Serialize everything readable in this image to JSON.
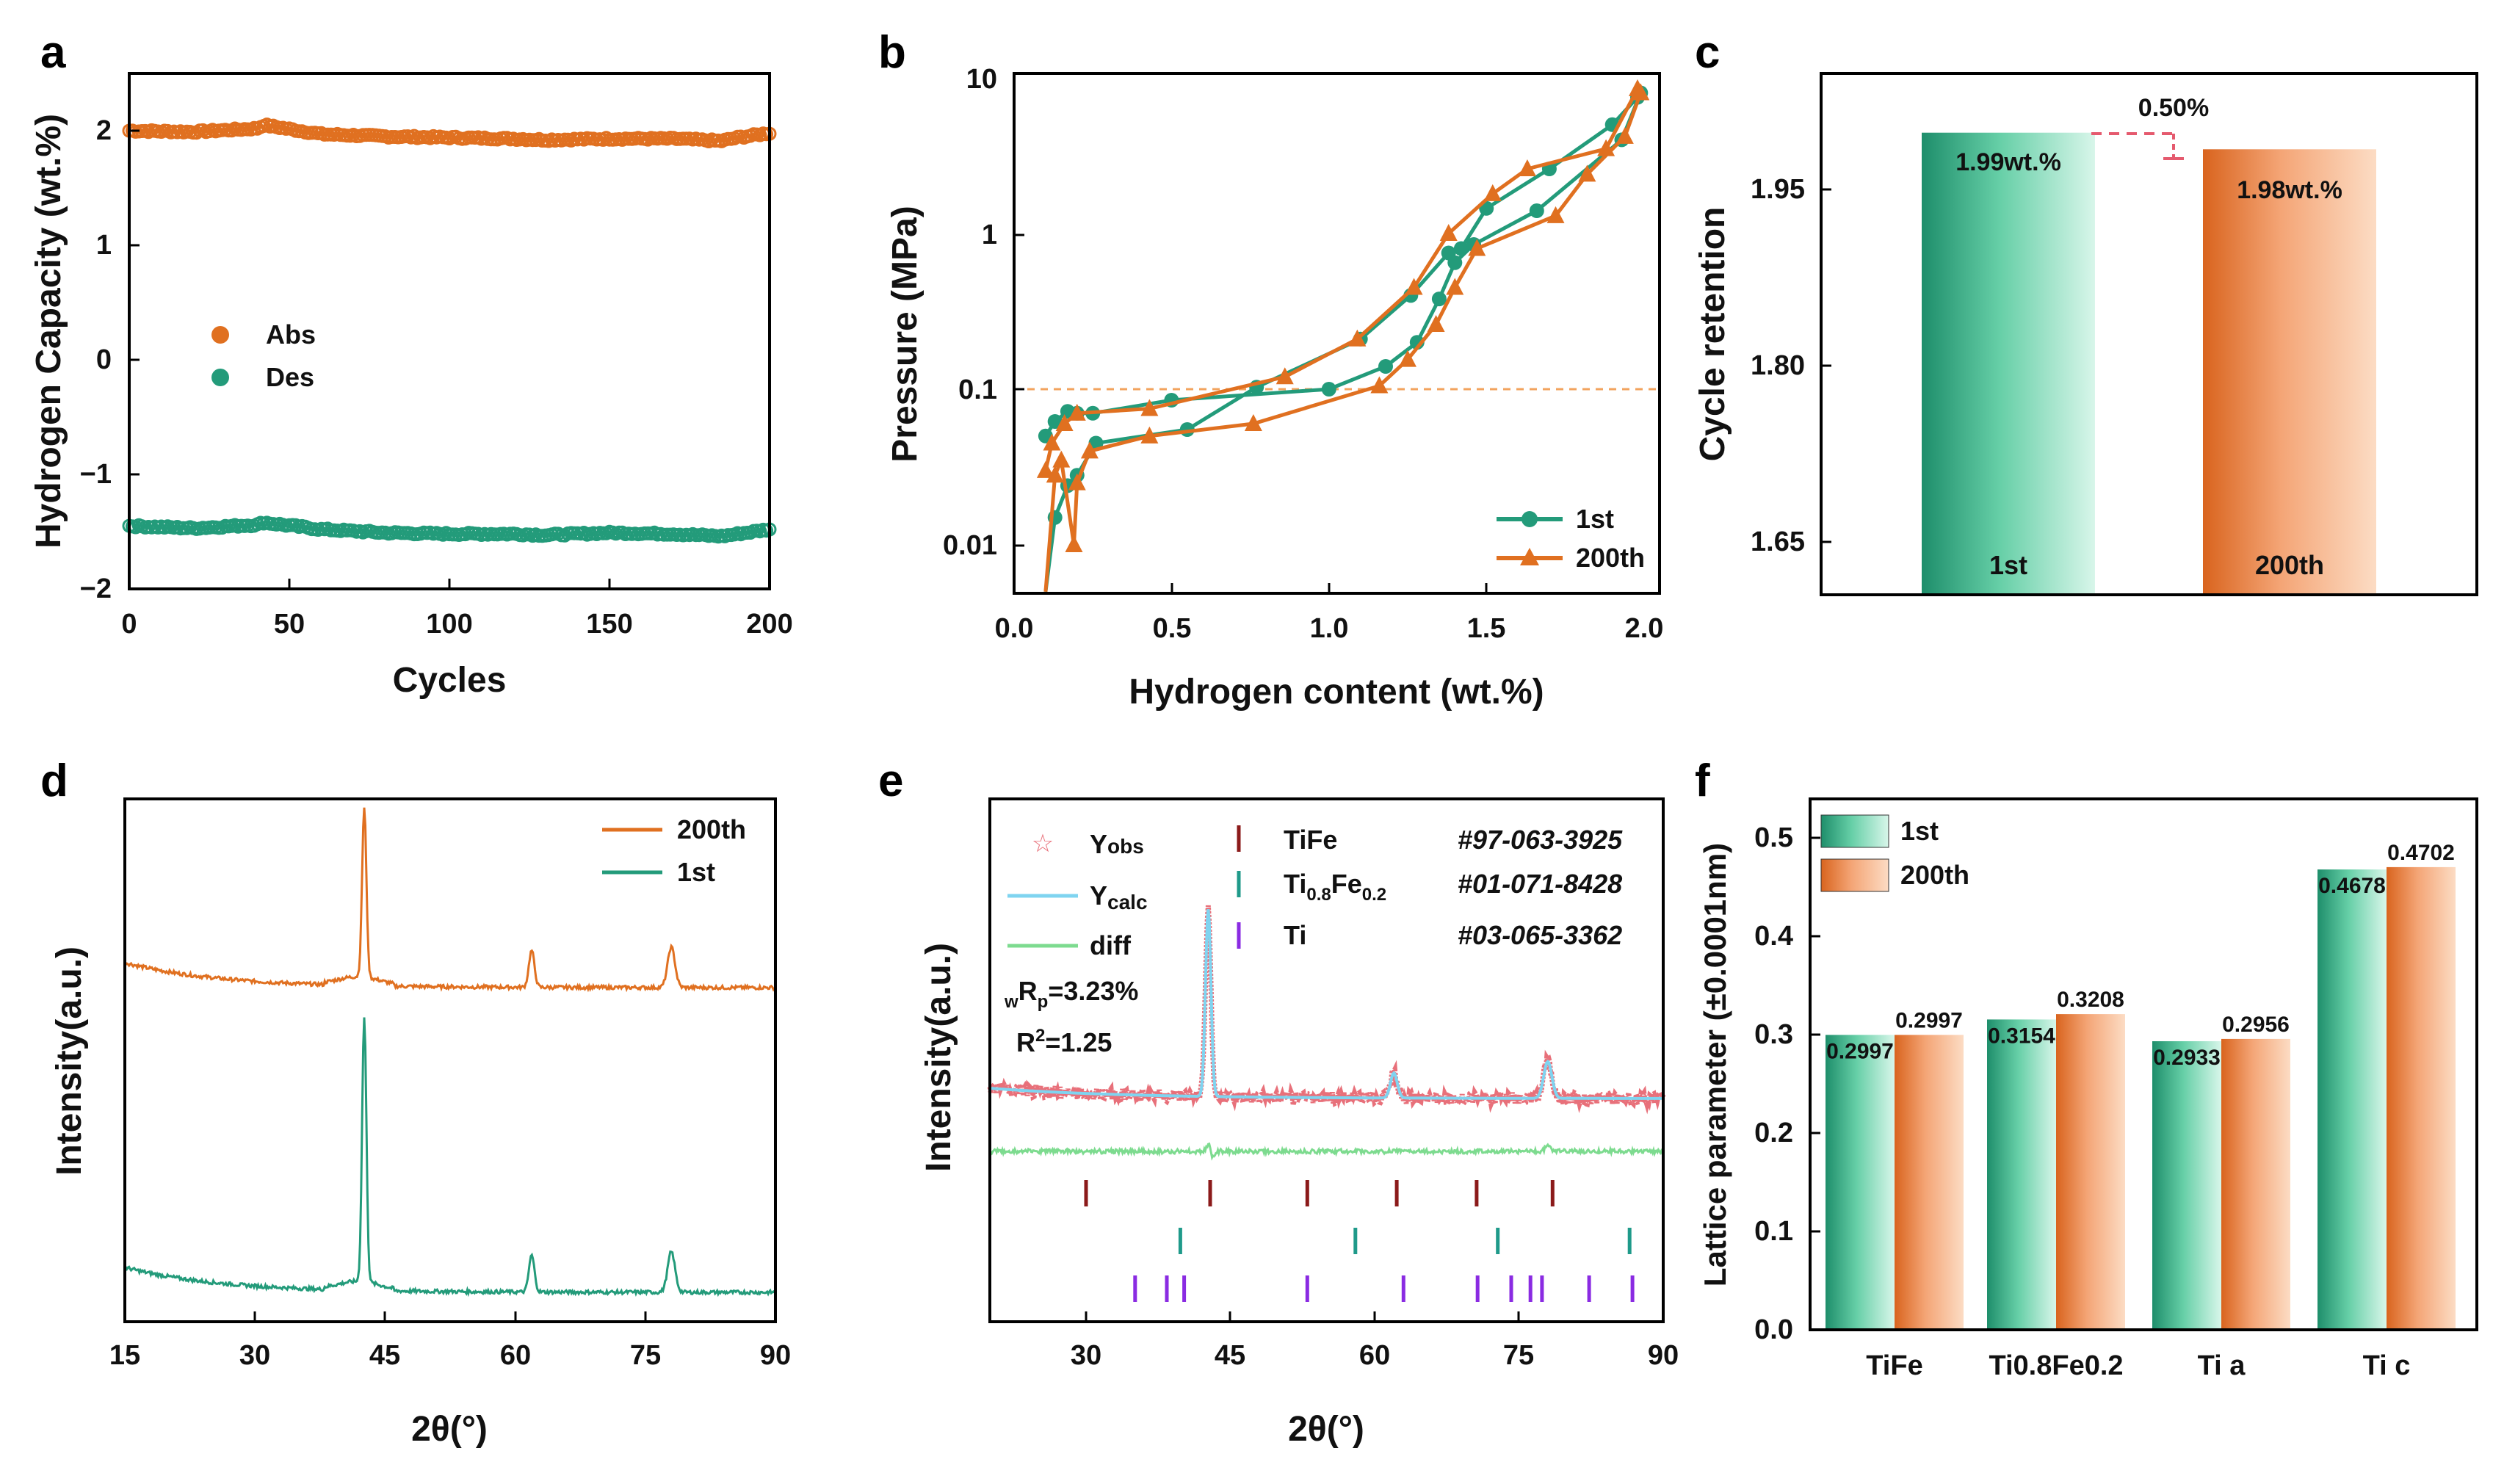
{
  "colors": {
    "orange": "#E07020",
    "green": "#239B7A",
    "red_obs": "#E8707A",
    "calc": "#7FD4F0",
    "diff": "#7DDB8F",
    "tife_tick": "#8B1A1A",
    "tife02_tick": "#1F9A8A",
    "ti_tick": "#8A2BE2",
    "bar_green_dark": "#1E8E6B",
    "bar_green_light": "#D8F6EA",
    "bar_orange_dark": "#D9641E",
    "bar_orange_light": "#FCDCC4"
  },
  "chart_data": [
    {
      "panel": "a",
      "type": "scatter",
      "xlabel": "Cycles",
      "ylabel": "Hydrogen Capacity (wt.%)",
      "xlim": [
        0,
        200
      ],
      "ylim": [
        -2,
        2.5
      ],
      "xticks": [
        "0",
        "50",
        "100",
        "150",
        "200"
      ],
      "yticks": [
        "2",
        "1",
        "0",
        "−1",
        "−2"
      ],
      "ytick_values": [
        2,
        1,
        0,
        -1,
        -2
      ],
      "legend": [
        "Abs",
        "Des"
      ],
      "series": [
        {
          "name": "Abs",
          "x": [
            0,
            20,
            40,
            42,
            60,
            80,
            100,
            120,
            130,
            150,
            170,
            185,
            190,
            200
          ],
          "y": [
            2.0,
            1.99,
            2.02,
            2.05,
            1.97,
            1.95,
            1.94,
            1.93,
            1.92,
            1.93,
            1.93,
            1.91,
            1.94,
            1.98
          ]
        },
        {
          "name": "Des",
          "x": [
            0,
            20,
            40,
            42,
            60,
            80,
            100,
            120,
            130,
            150,
            170,
            185,
            190,
            200
          ],
          "y": [
            -1.45,
            -1.47,
            -1.44,
            -1.42,
            -1.48,
            -1.51,
            -1.52,
            -1.52,
            -1.53,
            -1.51,
            -1.52,
            -1.54,
            -1.52,
            -1.48
          ]
        }
      ]
    },
    {
      "panel": "b",
      "type": "line",
      "xlabel": "Hydrogen content (wt.%)",
      "ylabel": "Pressure (MPa)",
      "xlim": [
        0,
        2.05
      ],
      "ylim_log": [
        0.005,
        10
      ],
      "xticks": [
        "0.0",
        "0.5",
        "1.0",
        "1.5",
        "2.0"
      ],
      "yticks": [
        "10",
        "1",
        "0.1",
        "0.01"
      ],
      "ytick_values": [
        10,
        1,
        0.1,
        0.01
      ],
      "reference_line": 0.1,
      "legend": [
        "1st",
        "200th"
      ],
      "series": [
        {
          "name": "1st",
          "x": [
            0.1,
            0.13,
            0.17,
            0.2,
            0.26,
            0.55,
            0.77,
            1.1,
            1.26,
            1.38,
            1.42,
            1.5,
            1.7,
            1.9,
            1.98,
            1.99,
            1.93,
            1.66,
            1.46,
            1.4,
            1.35,
            1.28,
            1.18,
            1.0,
            0.5,
            0.25,
            0.2,
            0.17,
            0.13,
            0.1
          ],
          "y": [
            0.005,
            0.015,
            0.024,
            0.028,
            0.045,
            0.055,
            0.103,
            0.21,
            0.4,
            0.75,
            0.8,
            1.45,
            2.6,
            5.0,
            7.5,
            8.0,
            4.0,
            1.4,
            0.85,
            0.65,
            0.38,
            0.2,
            0.14,
            0.1,
            0.085,
            0.07,
            0.07,
            0.072,
            0.062,
            0.05
          ]
        },
        {
          "name": "200th",
          "x": [
            0.1,
            0.13,
            0.15,
            0.19,
            0.2,
            0.24,
            0.43,
            0.76,
            1.16,
            1.25,
            1.34,
            1.4,
            1.47,
            1.72,
            1.82,
            1.94,
            1.99,
            1.98,
            1.88,
            1.63,
            1.52,
            1.38,
            1.27,
            1.09,
            0.86,
            0.43,
            0.2,
            0.16,
            0.12,
            0.1
          ],
          "y": [
            0.005,
            0.028,
            0.035,
            0.01,
            0.025,
            0.04,
            0.05,
            0.06,
            0.105,
            0.155,
            0.26,
            0.45,
            0.8,
            1.3,
            2.4,
            4.2,
            8.0,
            8.5,
            3.5,
            2.6,
            1.8,
            1.0,
            0.45,
            0.21,
            0.12,
            0.075,
            0.07,
            0.06,
            0.045,
            0.03
          ]
        }
      ]
    },
    {
      "panel": "c",
      "type": "bar",
      "ylabel": "Cycle retention",
      "ylim": [
        1.6,
        2.04
      ],
      "yticks": [
        "1.95",
        "1.80",
        "1.65"
      ],
      "ytick_values": [
        1.95,
        1.8,
        1.65
      ],
      "categories": [
        "1st",
        "200th"
      ],
      "values": [
        1.99,
        1.976
      ],
      "value_labels": [
        "1.99wt.%",
        "1.98wt.%"
      ],
      "annotation": "0.50%"
    },
    {
      "panel": "d",
      "type": "line",
      "xlabel": "2θ(°)",
      "ylabel": "Intensity(a.u.)",
      "xlim": [
        15,
        90
      ],
      "xticks": [
        "15",
        "30",
        "45",
        "60",
        "75",
        "90"
      ],
      "xtick_values": [
        15,
        30,
        45,
        60,
        75,
        90
      ],
      "legend": [
        "200th",
        "1st"
      ],
      "peaks_2theta": [
        42.6,
        61.9,
        78.0
      ]
    },
    {
      "panel": "e",
      "type": "line",
      "xlabel": "2θ(°)",
      "ylabel": "Intensity(a.u.)",
      "xlim": [
        20,
        90
      ],
      "xticks": [
        "30",
        "45",
        "60",
        "75",
        "90"
      ],
      "xtick_values": [
        30,
        45,
        60,
        75,
        90
      ],
      "legend": [
        "Yobs",
        "Ycalc",
        "diff"
      ],
      "stats": [
        "wRp=3.23%",
        "R2=1.25"
      ],
      "phases": [
        {
          "name": "TiFe",
          "ref": "#97-063-3925",
          "positions": [
            30.0,
            42.9,
            53.0,
            62.3,
            70.6,
            78.5
          ]
        },
        {
          "name": "Ti0.8Fe0.2",
          "ref": "#01-071-8428",
          "positions": [
            39.8,
            58.0,
            72.8,
            86.5
          ]
        },
        {
          "name": "Ti",
          "ref": "#03-065-3362",
          "positions": [
            35.1,
            38.4,
            40.2,
            53.0,
            63.0,
            70.7,
            74.2,
            76.2,
            77.4,
            82.3,
            86.8
          ]
        }
      ]
    },
    {
      "panel": "f",
      "type": "bar",
      "ylabel": "Lattice parameter (±0.0001nm)",
      "ylim": [
        0,
        0.55
      ],
      "yticks": [
        "0.0",
        "0.1",
        "0.2",
        "0.3",
        "0.4",
        "0.5"
      ],
      "ytick_values": [
        0,
        0.1,
        0.2,
        0.3,
        0.4,
        0.5
      ],
      "categories": [
        "TiFe",
        "Ti0.8Fe0.2",
        "Ti a",
        "Ti c"
      ],
      "series": [
        {
          "name": "1st",
          "values": [
            0.2997,
            0.3154,
            0.2933,
            0.4678
          ]
        },
        {
          "name": "200th",
          "values": [
            0.2997,
            0.3208,
            0.2956,
            0.4702
          ]
        }
      ],
      "value_labels_1st": [
        "0.2997",
        "0.3154",
        "0.2933",
        "0.4678"
      ],
      "value_labels_200th": [
        "0.2997",
        "0.3208",
        "0.2956",
        "0.4702"
      ]
    }
  ],
  "labels": {
    "a": {
      "letter": "a",
      "xlabel": "Cycles",
      "ylabel": "Hydrogen Capacity (wt.%)",
      "xticks": [
        "0",
        "50",
        "100",
        "150",
        "200"
      ],
      "yticks": [
        "2",
        "1",
        "0",
        "−1",
        "−2"
      ],
      "legend": [
        "Abs",
        "Des"
      ]
    },
    "b": {
      "letter": "b",
      "xlabel": "Hydrogen content (wt.%)",
      "ylabel": "Pressure (MPa)",
      "xticks": [
        "0.0",
        "0.5",
        "1.0",
        "1.5",
        "2.0"
      ],
      "yticks": [
        "10",
        "1",
        "0.1",
        "0.01"
      ],
      "legend": [
        "1st",
        "200th"
      ]
    },
    "c": {
      "letter": "c",
      "ylabel": "Cycle retention",
      "yticks": [
        "1.95",
        "1.80",
        "1.65"
      ],
      "bar_names": [
        "1st",
        "200th"
      ],
      "value_labels": [
        "1.99wt.%",
        "1.98wt.%"
      ],
      "annotation": "0.50%"
    },
    "d": {
      "letter": "d",
      "xlabel": "2θ(°)",
      "ylabel": "Intensity(a.u.)",
      "xticks": [
        "15",
        "30",
        "45",
        "60",
        "75",
        "90"
      ],
      "legend": [
        "200th",
        "1st"
      ]
    },
    "e": {
      "letter": "e",
      "xlabel": "2θ(°)",
      "ylabel": "Intensity(a.u.)",
      "xticks": [
        "30",
        "45",
        "60",
        "75",
        "90"
      ],
      "legend": [
        "Y",
        "obs",
        "Y",
        "calc",
        "diff"
      ],
      "stat1": [
        "w",
        "R",
        "p",
        "=3.23%"
      ],
      "stat2": [
        "R",
        "2",
        "=1.25"
      ],
      "phase_tife": "TiFe",
      "phase_ti08": [
        "Ti",
        "0.8",
        "Fe",
        "0.2"
      ],
      "phase_ti": "Ti",
      "refs": [
        "#97-063-3925",
        "#01-071-8428",
        "#03-065-3362"
      ]
    },
    "f": {
      "letter": "f",
      "ylabel": "Lattice parameter (±0.0001nm)",
      "xticks": [
        "TiFe",
        "Ti0.8Fe0.2",
        "Ti a",
        "Ti c"
      ],
      "yticks": [
        "0.0",
        "0.1",
        "0.2",
        "0.3",
        "0.4",
        "0.5"
      ],
      "legend": [
        "1st",
        "200th"
      ],
      "values_1st": [
        "0.2997",
        "0.3154",
        "0.2933",
        "0.4678"
      ],
      "values_200th": [
        "0.2997",
        "0.3208",
        "0.2956",
        "0.4702"
      ]
    }
  }
}
